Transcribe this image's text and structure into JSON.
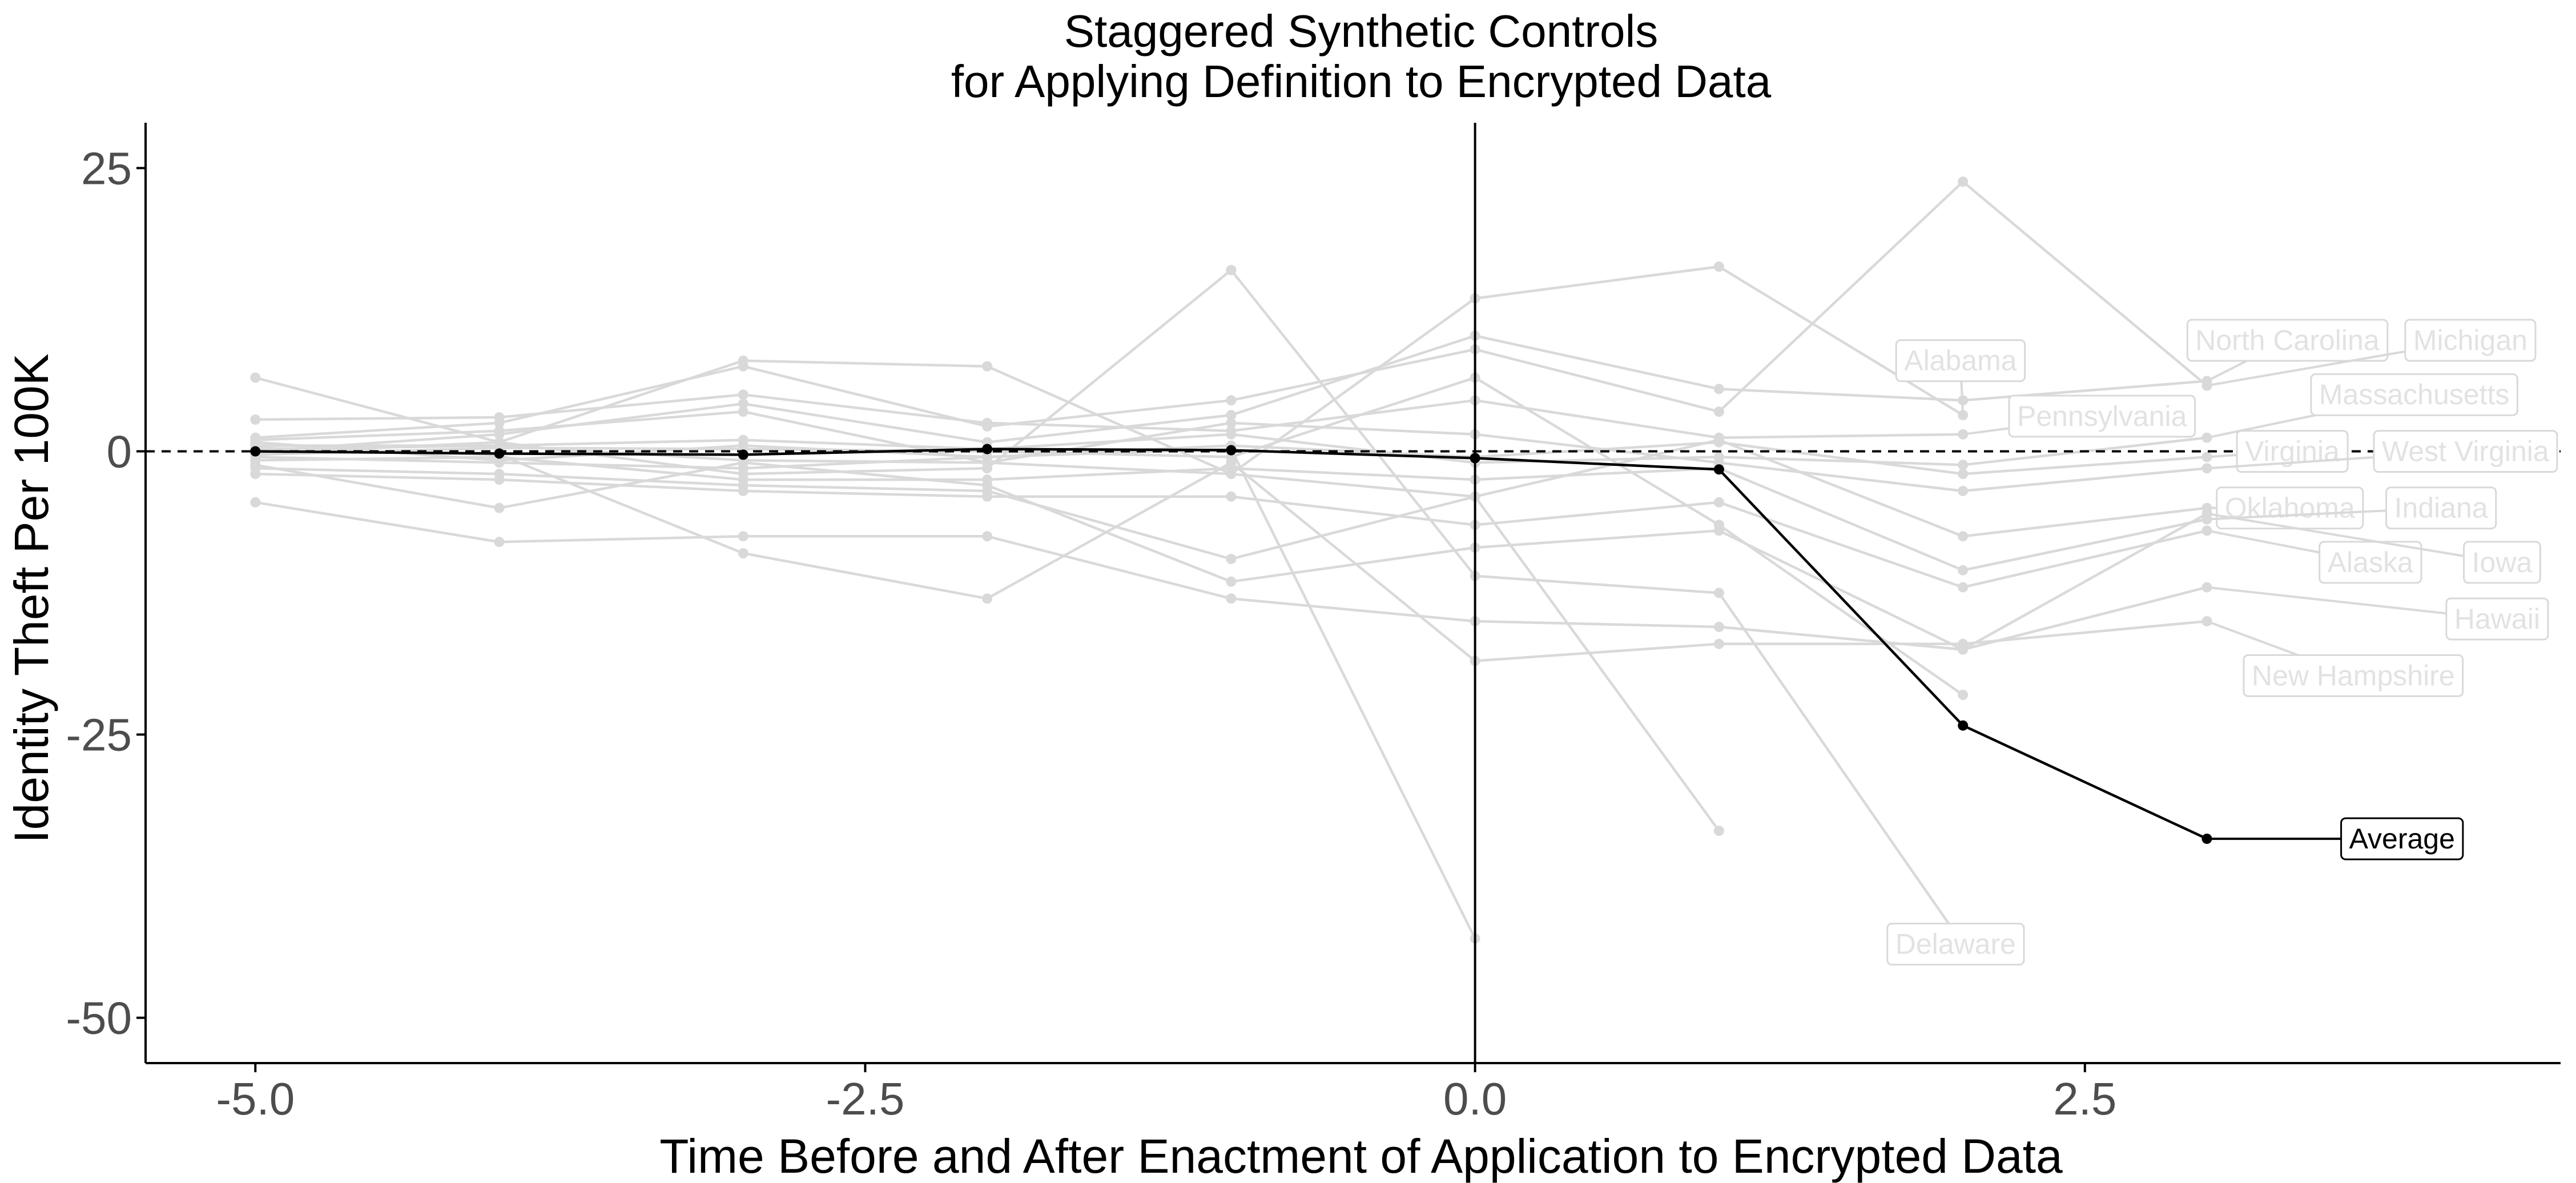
{
  "chart_data": {
    "type": "line",
    "title": [
      "Staggered Synthetic Controls",
      "for Applying Definition to Encrypted Data"
    ],
    "xlabel": "Time Before and After Enactment of Application to Encrypted Data",
    "ylabel": "Identity Theft Per 100K",
    "xlim": [
      -5.45,
      4.45
    ],
    "ylim": [
      -54,
      29
    ],
    "x_ticks": [
      -5.0,
      -2.5,
      0.0,
      2.5
    ],
    "x_tick_labels": [
      "-5.0",
      "-2.5",
      "0.0",
      "2.5"
    ],
    "y_ticks": [
      25,
      0,
      -25,
      -50
    ],
    "y_tick_labels": [
      "25",
      "0",
      "-25",
      "-50"
    ],
    "reference_lines": {
      "vertical_x": 0,
      "horizontal_dashed_y": 0
    },
    "grid": false,
    "colors": {
      "background_series": "#d9d9d9",
      "background_label": "#e2e2e2",
      "average": "#000000",
      "axis": "#000000",
      "tick_text": "#4d4d4d"
    },
    "series": [
      {
        "name": "North Carolina",
        "label_x": 3.33,
        "label_y": 9.8,
        "points": [
          [
            -5,
            0
          ],
          [
            -4,
            1.5
          ],
          [
            -3,
            4.2
          ],
          [
            -2,
            0.8
          ],
          [
            -1,
            3.2
          ],
          [
            0,
            10.2
          ],
          [
            1,
            5.5
          ],
          [
            2,
            4.5
          ],
          [
            3,
            6.2
          ]
        ]
      },
      {
        "name": "Michigan",
        "label_x": 4.08,
        "label_y": 9.8,
        "points": [
          [
            -5,
            1.2
          ],
          [
            -4,
            2.5
          ],
          [
            -3,
            7.5
          ],
          [
            -2,
            2.2
          ],
          [
            -1,
            4.5
          ],
          [
            0,
            9.0
          ],
          [
            1,
            3.5
          ],
          [
            2,
            23.8
          ],
          [
            3,
            5.8
          ]
        ]
      },
      {
        "name": "Alabama",
        "label_x": 1.99,
        "label_y": 8.0,
        "points": [
          [
            -5,
            6.5
          ],
          [
            -4,
            0.8
          ],
          [
            -3,
            8.0
          ],
          [
            -2,
            7.5
          ],
          [
            -1,
            -2.0
          ],
          [
            0,
            13.5
          ],
          [
            1,
            16.3
          ],
          [
            2,
            3.2
          ]
        ]
      },
      {
        "name": "Pennsylvania",
        "label_x": 2.57,
        "label_y": 3.1,
        "points": [
          [
            -5,
            2.8
          ],
          [
            -4,
            3.0
          ],
          [
            -3,
            5.0
          ],
          [
            -2,
            2.5
          ],
          [
            -1,
            1.8
          ],
          [
            0,
            4.5
          ],
          [
            1,
            1.2
          ],
          [
            2,
            1.5
          ]
        ]
      },
      {
        "name": "Massachusetts",
        "label_x": 3.85,
        "label_y": 5.0,
        "points": [
          [
            -5,
            0.5
          ],
          [
            -4,
            0.5
          ],
          [
            -3,
            1.0
          ],
          [
            -2,
            0.2
          ],
          [
            -1,
            1.5
          ],
          [
            0,
            -1.0
          ],
          [
            1,
            -0.5
          ],
          [
            2,
            -1.2
          ],
          [
            3,
            1.2
          ]
        ]
      },
      {
        "name": "Virginia",
        "label_x": 3.35,
        "label_y": 0,
        "points": [
          [
            -5,
            -0.5
          ],
          [
            -4,
            -1.0
          ],
          [
            -3,
            -1.5
          ],
          [
            -2,
            -0.5
          ],
          [
            -1,
            0.5
          ],
          [
            0,
            -0.5
          ],
          [
            1,
            0.8
          ],
          [
            2,
            -2.0
          ],
          [
            3,
            -0.5
          ]
        ]
      },
      {
        "name": "West Virginia",
        "label_x": 4.06,
        "label_y": 0,
        "points": [
          [
            -5,
            1.0
          ],
          [
            -4,
            1.8
          ],
          [
            -3,
            3.5
          ],
          [
            -2,
            -1.0
          ],
          [
            -1,
            2.5
          ],
          [
            0,
            1.5
          ],
          [
            1,
            -1.0
          ],
          [
            2,
            -3.5
          ],
          [
            3,
            -1.5
          ]
        ]
      },
      {
        "name": "Oklahoma",
        "label_x": 3.34,
        "label_y": -5.0,
        "points": [
          [
            -5,
            -1.5
          ],
          [
            -4,
            -2.0
          ],
          [
            -3,
            -3.0
          ],
          [
            -2,
            -3.5
          ],
          [
            -1,
            -9.5
          ],
          [
            0,
            -4.0
          ],
          [
            1,
            1.0
          ],
          [
            2,
            -7.5
          ],
          [
            3,
            -5.0
          ]
        ]
      },
      {
        "name": "Indiana",
        "label_x": 3.96,
        "label_y": -5.0,
        "points": [
          [
            -5,
            -0.8
          ],
          [
            -4,
            -0.5
          ],
          [
            -3,
            -2.5
          ],
          [
            -2,
            -2.5
          ],
          [
            -1,
            -1.5
          ],
          [
            0,
            -2.5
          ],
          [
            1,
            -1.5
          ],
          [
            2,
            -10.5
          ],
          [
            3,
            -6.0
          ]
        ]
      },
      {
        "name": "Alaska",
        "label_x": 3.67,
        "label_y": -9.8,
        "points": [
          [
            -5,
            -2.0
          ],
          [
            -4,
            -2.5
          ],
          [
            -3,
            -3.5
          ],
          [
            -2,
            -4.0
          ],
          [
            -1,
            -4.0
          ],
          [
            0,
            -6.5
          ],
          [
            1,
            -4.5
          ],
          [
            2,
            -12.0
          ],
          [
            3,
            -7.0
          ]
        ]
      },
      {
        "name": "Iowa",
        "label_x": 4.21,
        "label_y": -9.8,
        "points": [
          [
            -5,
            -1.2
          ],
          [
            -4,
            -5.0
          ],
          [
            -3,
            -1.0
          ],
          [
            -2,
            -3.0
          ],
          [
            -1,
            -11.5
          ],
          [
            0,
            -8.5
          ],
          [
            1,
            -7.0
          ],
          [
            2,
            -17.5
          ],
          [
            3,
            -5.5
          ]
        ]
      },
      {
        "name": "Hawaii",
        "label_x": 4.19,
        "label_y": -14.8,
        "points": [
          [
            -5,
            -4.5
          ],
          [
            -4,
            -8.0
          ],
          [
            -3,
            -7.5
          ],
          [
            -2,
            -7.5
          ],
          [
            -1,
            -13.0
          ],
          [
            0,
            -15.0
          ],
          [
            1,
            -15.5
          ],
          [
            2,
            -17.5
          ],
          [
            3,
            -12.0
          ]
        ]
      },
      {
        "name": "New Hampshire",
        "label_x": 3.6,
        "label_y": -19.8,
        "points": [
          [
            -5,
            0.3
          ],
          [
            -4,
            -0.3
          ],
          [
            -3,
            -9.0
          ],
          [
            -2,
            -13.0
          ],
          [
            -1,
            -1.0
          ],
          [
            0,
            -18.5
          ],
          [
            1,
            -17.0
          ],
          [
            2,
            -17.0
          ],
          [
            3,
            -15.0
          ]
        ]
      },
      {
        "name": "Delaware",
        "label_x": 1.97,
        "label_y": -43.5,
        "points": [
          [
            -5,
            -0.2
          ],
          [
            -4,
            0.8
          ],
          [
            -3,
            -2.0
          ],
          [
            -2,
            -1.5
          ],
          [
            -1,
            16.0
          ],
          [
            0,
            -11.0
          ],
          [
            1,
            -12.5
          ],
          [
            2,
            -43.5
          ]
        ]
      },
      {
        "name": "",
        "label_x": null,
        "label_y": null,
        "points": [
          [
            -5,
            0.8
          ],
          [
            -4,
            -0.8
          ],
          [
            -3,
            0.5
          ],
          [
            -2,
            -0.5
          ],
          [
            -1,
            0.2
          ],
          [
            0,
            -43.0
          ]
        ]
      },
      {
        "name": "",
        "label_x": null,
        "label_y": null,
        "points": [
          [
            -5,
            -0.3
          ],
          [
            -4,
            0.3
          ],
          [
            -3,
            0.2
          ],
          [
            -2,
            0
          ],
          [
            -1,
            -0.5
          ],
          [
            0,
            6.5
          ],
          [
            1,
            -6.5
          ],
          [
            2,
            -21.5
          ]
        ]
      },
      {
        "name": "",
        "label_x": null,
        "label_y": null,
        "points": [
          [
            -5,
            0.2
          ],
          [
            -4,
            0.5
          ],
          [
            -3,
            -0.8
          ],
          [
            -2,
            -1.0
          ],
          [
            -1,
            -2.0
          ],
          [
            0,
            -4.0
          ],
          [
            1,
            -33.5
          ]
        ]
      }
    ],
    "average": {
      "name": "Average",
      "label_x": 3.8,
      "label_y": -34.2,
      "points": [
        [
          -5,
          0
        ],
        [
          -4,
          -0.2
        ],
        [
          -3,
          -0.3
        ],
        [
          -2,
          0.2
        ],
        [
          -1,
          0.1
        ],
        [
          0,
          -0.6
        ],
        [
          1,
          -1.6
        ],
        [
          2,
          -24.2
        ],
        [
          3,
          -34.2
        ]
      ]
    }
  }
}
